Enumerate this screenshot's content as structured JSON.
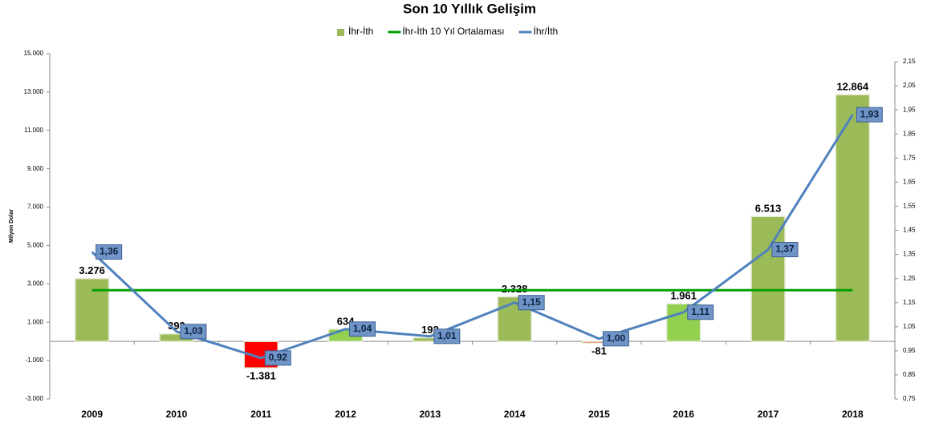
{
  "chart_data": {
    "type": "combo",
    "title": "Son 10 Yıllık Gelişim",
    "y_label": "Milyon Dolar",
    "categories": [
      "2009",
      "2010",
      "2011",
      "2012",
      "2013",
      "2014",
      "2015",
      "2016",
      "2017",
      "2018"
    ],
    "series": [
      {
        "name": "İhr-İth",
        "type": "bar",
        "color": "#9bbb59",
        "colors": [
          "#9bbb59",
          "#9bbb59",
          "#ff0000",
          "#92d050",
          "#9bbb59",
          "#9bbb59",
          "#ff0000",
          "#92d050",
          "#9bbb59",
          "#9bbb59"
        ],
        "values": [
          3276,
          393,
          -1381,
          634,
          192,
          2328,
          -81,
          1961,
          6513,
          12864
        ],
        "value_labels": [
          "3.276",
          "393",
          "-1.381",
          "634",
          "192",
          "2.328",
          "-81",
          "1.961",
          "6.513",
          "12.864"
        ]
      },
      {
        "name": "İhr-İth 10 Yıl Ortalaması",
        "type": "line",
        "color": "#00a000",
        "values": [
          2670,
          2670,
          2670,
          2670,
          2670,
          2670,
          2670,
          2670,
          2670,
          2670
        ]
      },
      {
        "name": "İhr/İth",
        "type": "line",
        "axis": "y2",
        "color": "#4f81bd",
        "labelled": true,
        "values": [
          1.36,
          1.03,
          0.92,
          1.04,
          1.01,
          1.15,
          1.0,
          1.11,
          1.37,
          1.93
        ],
        "value_labels": [
          "1,36",
          "1,03",
          "0,92",
          "1,04",
          "1,01",
          "1,15",
          "1,00",
          "1,11",
          "1,37",
          "1,93"
        ]
      }
    ],
    "ylim": [
      -3000,
      15000
    ],
    "yticks": [
      {
        "value": -3000,
        "label": "-3.000"
      },
      {
        "value": -1000,
        "label": "-1.000"
      },
      {
        "value": 1000,
        "label": "1.000"
      },
      {
        "value": 3000,
        "label": "3.000"
      },
      {
        "value": 5000,
        "label": "5.000"
      },
      {
        "value": 7000,
        "label": "7.000"
      },
      {
        "value": 9000,
        "label": "9.000"
      },
      {
        "value": 11000,
        "label": "11.000"
      },
      {
        "value": 13000,
        "label": "13.000"
      },
      {
        "value": 15000,
        "label": "15.000"
      }
    ],
    "y2lim": [
      0.75,
      2.15
    ],
    "y2ticks": [
      {
        "value": 0.75,
        "label": "0,75"
      },
      {
        "value": 0.85,
        "label": "0,85"
      },
      {
        "value": 0.95,
        "label": "0,95"
      },
      {
        "value": 1.05,
        "label": "1,05"
      },
      {
        "value": 1.15,
        "label": "1,15"
      },
      {
        "value": 1.25,
        "label": "1,25"
      },
      {
        "value": 1.35,
        "label": "1,35"
      },
      {
        "value": 1.45,
        "label": "1,45"
      },
      {
        "value": 1.55,
        "label": "1,55"
      },
      {
        "value": 1.65,
        "label": "1,65"
      },
      {
        "value": 1.75,
        "label": "1,75"
      },
      {
        "value": 1.85,
        "label": "1,85"
      },
      {
        "value": 1.95,
        "label": "1,95"
      },
      {
        "value": 2.05,
        "label": "2,05"
      },
      {
        "value": 2.15,
        "label": "2,15"
      }
    ],
    "grid": false,
    "legend": "top"
  }
}
